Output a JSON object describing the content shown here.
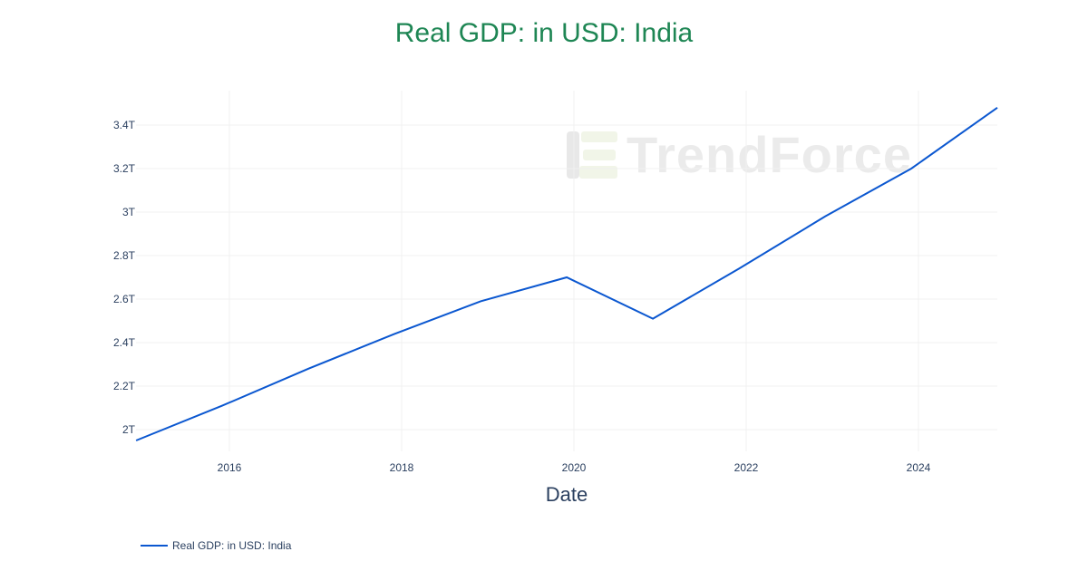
{
  "title": "Real GDP: in USD: India",
  "watermark": "TrendForce",
  "colors": {
    "title": "#1e8654",
    "line": "#0b57d0",
    "axis_text": "#2a3f5f",
    "grid": "#f0f0f0"
  },
  "legend": {
    "items": [
      {
        "label": "Real GDP: in USD: India"
      }
    ]
  },
  "axes": {
    "x_title": "Date",
    "x_ticks": [
      "2016",
      "2018",
      "2020",
      "2022",
      "2024"
    ],
    "y_ticks": [
      "2T",
      "2.2T",
      "2.4T",
      "2.6T",
      "2.8T",
      "3T",
      "3.2T",
      "3.4T"
    ]
  },
  "chart_data": {
    "type": "line",
    "title": "Real GDP: in USD: India",
    "xlabel": "Date",
    "ylabel": "",
    "x": [
      "2014-12",
      "2015-12",
      "2016-12",
      "2017-12",
      "2018-12",
      "2019-12",
      "2020-12",
      "2021-12",
      "2022-12",
      "2023-12",
      "2024-12"
    ],
    "series": [
      {
        "name": "Real GDP: in USD: India",
        "values": [
          1.95,
          2.11,
          2.28,
          2.44,
          2.59,
          2.7,
          2.51,
          2.74,
          2.98,
          3.2,
          3.48
        ],
        "unit": "T USD"
      }
    ],
    "ylim": [
      1.9,
      3.55
    ],
    "y_ticks": [
      2.0,
      2.2,
      2.4,
      2.6,
      2.8,
      3.0,
      3.2,
      3.4
    ],
    "x_ticks": [
      2016,
      2018,
      2020,
      2022,
      2024
    ],
    "grid": true,
    "legend_position": "bottom-left"
  }
}
